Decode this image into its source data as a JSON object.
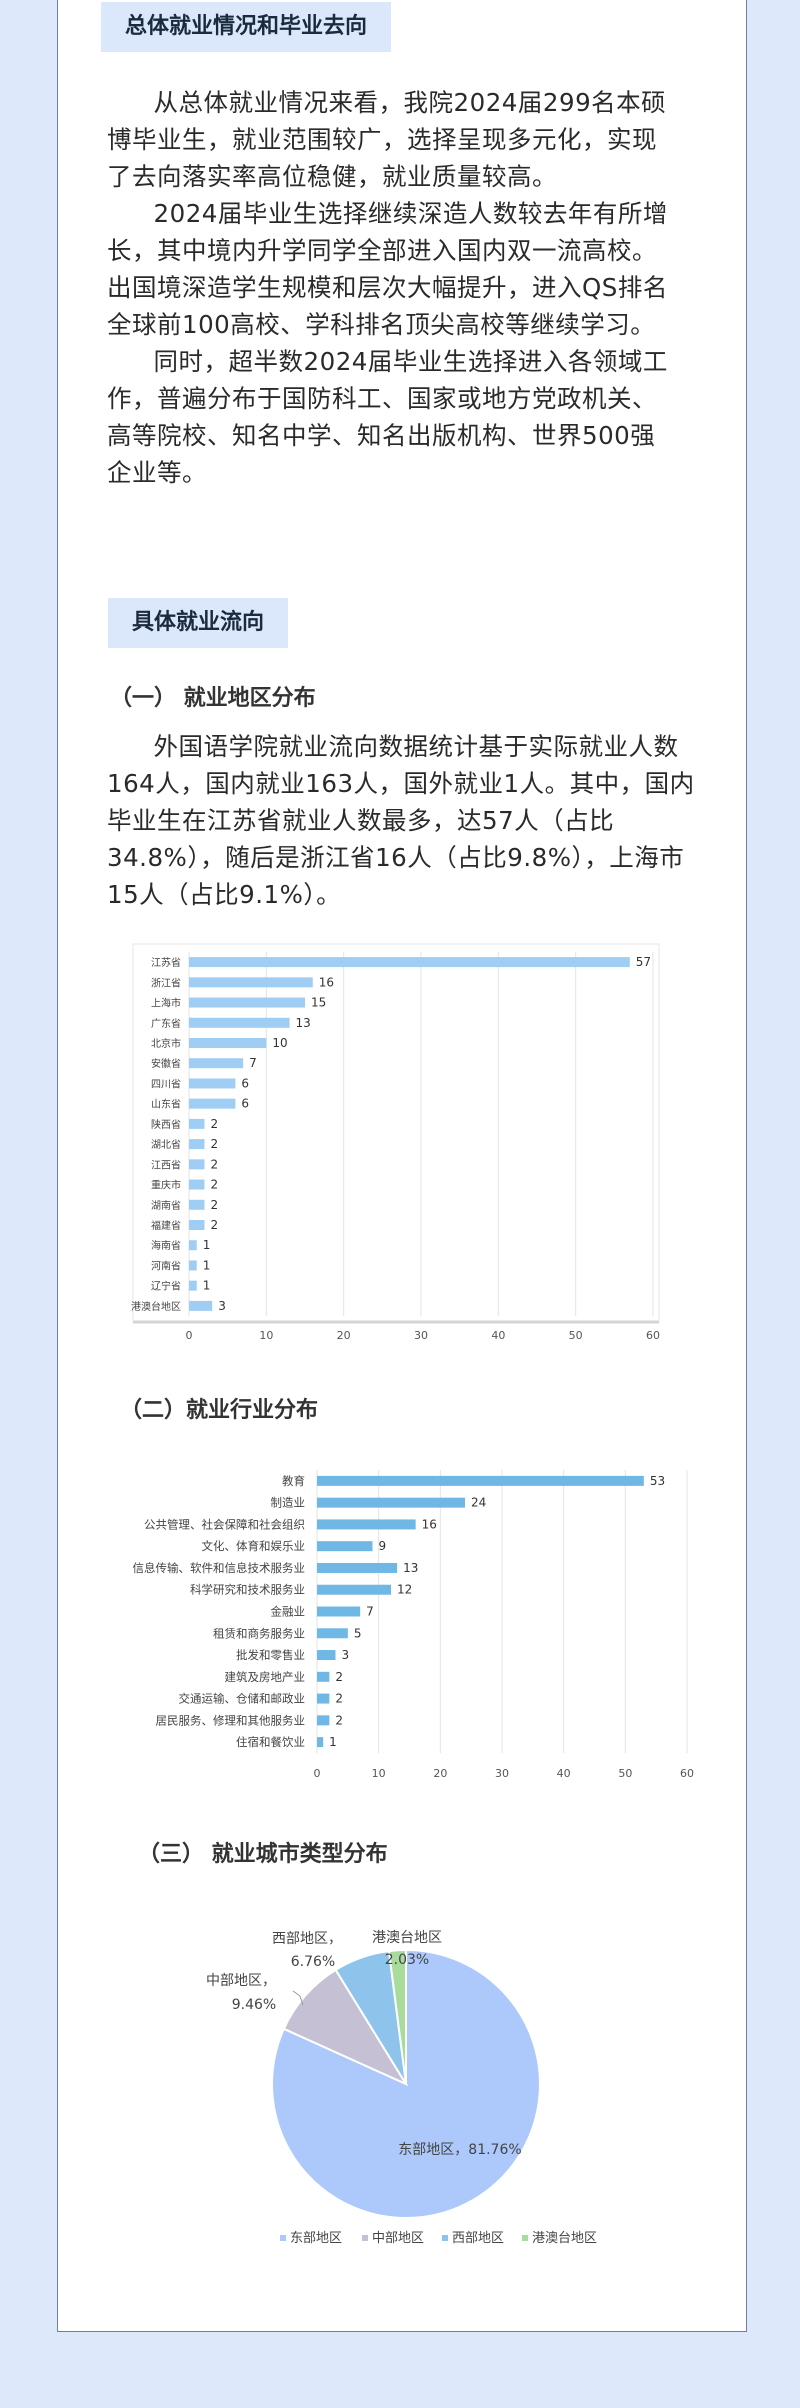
{
  "sections": {
    "overview_title": "总体就业情况和毕业去向",
    "overview_paragraphs": [
      "从总体就业情况来看，我院2024届299名本硕博毕业生，就业范围较广，选择呈现多元化，实现了去向落实率高位稳健，就业质量较高。",
      "2024届毕业生选择继续深造人数较去年有所增长，其中境内升学同学全部进入国内双一流高校。出国境深造学生规模和层次大幅提升，进入QS排名全球前100高校、学科排名顶尖高校等继续学习。",
      "同时，超半数2024届毕业生选择进入各领域工作，普遍分布于国防科工、国家或地方党政机关、高等院校、知名中学、知名出版机构、世界500强企业等。"
    ],
    "flow_title": "具体就业流向",
    "region_heading": "（一） 就业地区分布",
    "region_paragraph": "外国语学院就业流向数据统计基于实际就业人数164人，国内就业163人，国外就业1人。其中，国内毕业生在江苏省就业人数最多，达57人（占比34.8%），随后是浙江省16人（占比9.8%），上海市15人（占比9.1%）。",
    "industry_heading": "（二）就业行业分布",
    "city_heading": "（三） 就业城市类型分布"
  },
  "colors": {
    "background": "#dde8fb",
    "tag_bg": "#dbe7fb",
    "bar_province": "#9fcdf3",
    "bar_industry": "#6fb8e6",
    "pie_east": "#adc9fb",
    "pie_central": "#c5c0d3",
    "pie_west": "#8ec4ec",
    "pie_hkmt": "#a9dc9c"
  },
  "chart_data": [
    {
      "type": "bar",
      "orientation": "horizontal",
      "categories": [
        "江苏省",
        "浙江省",
        "上海市",
        "广东省",
        "北京市",
        "安徽省",
        "四川省",
        "山东省",
        "陕西省",
        "湖北省",
        "江西省",
        "重庆市",
        "湖南省",
        "福建省",
        "海南省",
        "河南省",
        "辽宁省",
        "港澳台地区"
      ],
      "values": [
        57,
        16,
        15,
        13,
        10,
        7,
        6,
        6,
        2,
        2,
        2,
        2,
        2,
        2,
        1,
        1,
        1,
        3
      ],
      "xlim": [
        0,
        60
      ],
      "xticks": [
        0,
        10,
        20,
        30,
        40,
        50,
        60
      ],
      "grid": true,
      "data_labels": true
    },
    {
      "type": "bar",
      "orientation": "horizontal",
      "categories": [
        "教育",
        "制造业",
        "公共管理、社会保障和社会组织",
        "文化、体育和娱乐业",
        "信息传输、软件和信息技术服务业",
        "科学研究和技术服务业",
        "金融业",
        "租赁和商务服务业",
        "批发和零售业",
        "建筑及房地产业",
        "交通运输、仓储和邮政业",
        "居民服务、修理和其他服务业",
        "住宿和餐饮业"
      ],
      "values": [
        53,
        24,
        16,
        9,
        13,
        12,
        7,
        5,
        3,
        2,
        2,
        2,
        1
      ],
      "xlim": [
        0,
        60
      ],
      "xticks": [
        0,
        10,
        20,
        30,
        40,
        50,
        60
      ],
      "grid": true,
      "data_labels": true
    },
    {
      "type": "pie",
      "slices": [
        {
          "label": "东部地区",
          "percent": 81.76,
          "display": "东部地区，81.76%"
        },
        {
          "label": "中部地区",
          "percent": 9.46,
          "display_line1": "中部地区，",
          "display_line2": "9.46%"
        },
        {
          "label": "西部地区",
          "percent": 6.76,
          "display_line1": "西部地区，",
          "display_line2": "6.76%"
        },
        {
          "label": "港澳台地区",
          "percent": 2.03,
          "display_line1": "港澳台地区",
          "display_line2": "2.03%"
        }
      ],
      "legend": [
        "东部地区",
        "中部地区",
        "西部地区",
        "港澳台地区"
      ],
      "legend_position": "bottom"
    }
  ]
}
